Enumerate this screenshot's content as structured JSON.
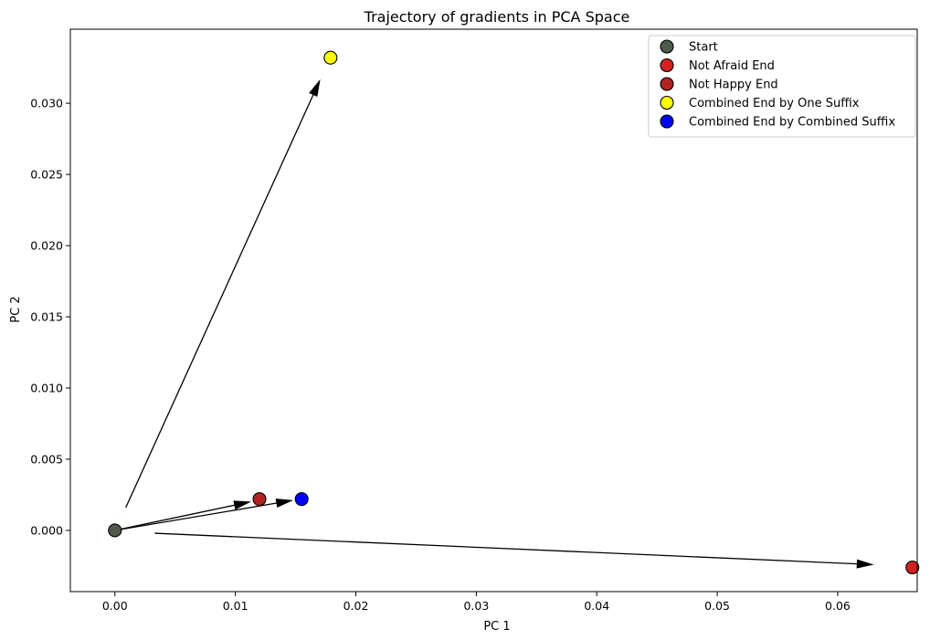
{
  "chart_data": {
    "type": "scatter",
    "title": "Trajectory of gradients in PCA Space",
    "xlabel": "PC 1",
    "ylabel": "PC 2",
    "xlim": [
      -0.0037,
      0.0666
    ],
    "ylim": [
      -0.0043,
      0.0352
    ],
    "xticks": [
      "0.00",
      "0.01",
      "0.02",
      "0.03",
      "0.04",
      "0.05",
      "0.06"
    ],
    "xtick_values": [
      0.0,
      0.01,
      0.02,
      0.03,
      0.04,
      0.05,
      0.06
    ],
    "yticks": [
      "0.000",
      "0.005",
      "0.010",
      "0.015",
      "0.020",
      "0.025",
      "0.030"
    ],
    "ytick_values": [
      0.0,
      0.005,
      0.01,
      0.015,
      0.02,
      0.025,
      0.03
    ],
    "grid": false,
    "legend_position": "top-right",
    "series": [
      {
        "name": "Start",
        "x": 0.0,
        "y": 0.0,
        "color": "#4f5a4c"
      },
      {
        "name": "Not Afraid End",
        "x": 0.0662,
        "y": -0.0026,
        "color": "#d42020"
      },
      {
        "name": "Not Happy End",
        "x": 0.012,
        "y": 0.0022,
        "color": "#b22222"
      },
      {
        "name": "Combined End by One Suffix",
        "x": 0.0179,
        "y": 0.0332,
        "color": "#ffff00"
      },
      {
        "name": "Combined End by Combined Suffix",
        "x": 0.0155,
        "y": 0.0022,
        "color": "#0000ff"
      }
    ],
    "arrows": [
      {
        "from": [
          0.0009,
          0.0016
        ],
        "to": [
          0.017,
          0.0316
        ]
      },
      {
        "from": [
          0.0033,
          -0.0002
        ],
        "to": [
          0.0629,
          -0.0024
        ]
      },
      {
        "from": [
          0.0,
          0.0
        ],
        "to": [
          0.0112,
          0.002
        ]
      },
      {
        "from": [
          0.0,
          0.0
        ],
        "to": [
          0.0147,
          0.0021
        ]
      }
    ]
  }
}
